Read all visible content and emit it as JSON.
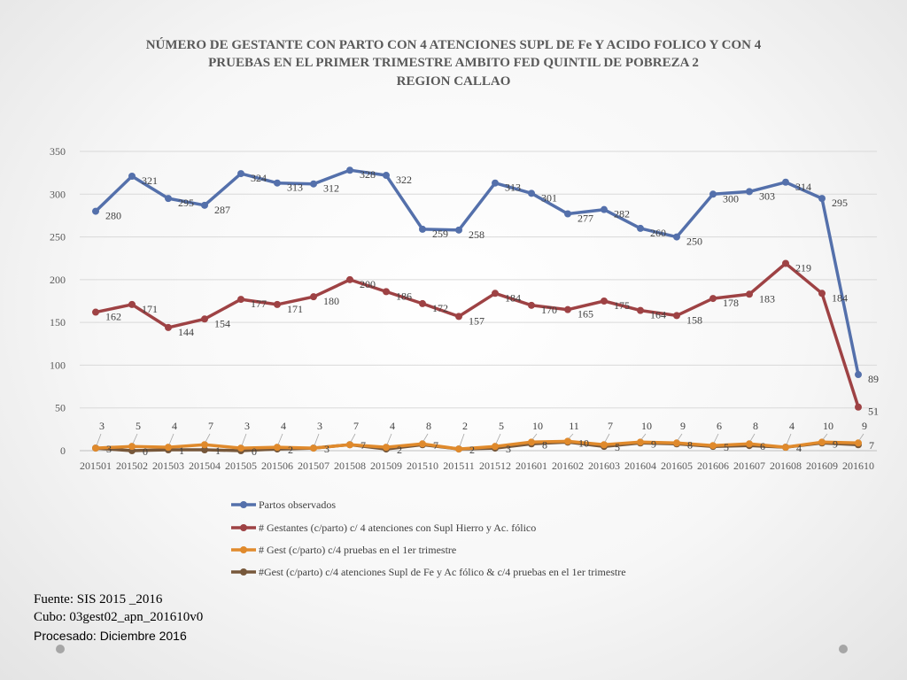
{
  "chart_data": {
    "type": "line",
    "title": [
      "NÚMERO DE GESTANTE  CON PARTO CON 4 ATENCIONES SUPL DE Fe Y ACIDO FOLICO  Y CON 4",
      "PRUEBAS EN EL PRIMER TRIMESTRE AMBITO FED QUINTIL DE POBREZA  2",
      "REGION CALLAO"
    ],
    "categories": [
      "201501",
      "201502",
      "201503",
      "201504",
      "201505",
      "201506",
      "201507",
      "201508",
      "201509",
      "201510",
      "201511",
      "201512",
      "201601",
      "201602",
      "201603",
      "201604",
      "201605",
      "201606",
      "201607",
      "201608",
      "201609",
      "201610"
    ],
    "y_ticks": [
      0,
      50,
      100,
      150,
      200,
      250,
      300,
      350
    ],
    "ylim": [
      0,
      350
    ],
    "legend_position": "bottom",
    "grid": true,
    "series": [
      {
        "name": "Partos observados",
        "color": "#5470ab",
        "values": [
          280,
          321,
          295,
          287,
          324,
          313,
          312,
          328,
          322,
          259,
          258,
          313,
          301,
          277,
          282,
          260,
          250,
          300,
          303,
          314,
          295,
          89
        ]
      },
      {
        "name": "# Gestantes (c/parto) c/ 4 atenciones con Supl Hierro y Ac. fólico",
        "color": "#9e4244",
        "values": [
          162,
          171,
          144,
          154,
          177,
          171,
          180,
          200,
          186,
          172,
          157,
          184,
          170,
          165,
          175,
          164,
          158,
          178,
          183,
          219,
          184,
          51
        ]
      },
      {
        "name": "# Gest (c/parto) c/4 pruebas en el 1er trimestre",
        "color": "#e08a2c",
        "values": [
          3,
          5,
          4,
          7,
          3,
          4,
          3,
          7,
          4,
          8,
          2,
          5,
          10,
          11,
          7,
          10,
          9,
          6,
          8,
          4,
          10,
          9
        ]
      },
      {
        "name": "#Gest (c/parto) c/4 atenciones Supl de Fe y Ac fólico & c/4 pruebas en el 1er trimestre",
        "color": "#76573a",
        "values": [
          3,
          0,
          1,
          1,
          0,
          2,
          3,
          7,
          2,
          7,
          2,
          3,
          8,
          10,
          5,
          9,
          8,
          5,
          6,
          4,
          9,
          7
        ]
      }
    ]
  },
  "footer": {
    "source": "Fuente: SIS 2015 _2016",
    "cube": "Cubo: 03gest02_apn_201610v0",
    "processed": "Procesado: Diciembre 2016"
  }
}
